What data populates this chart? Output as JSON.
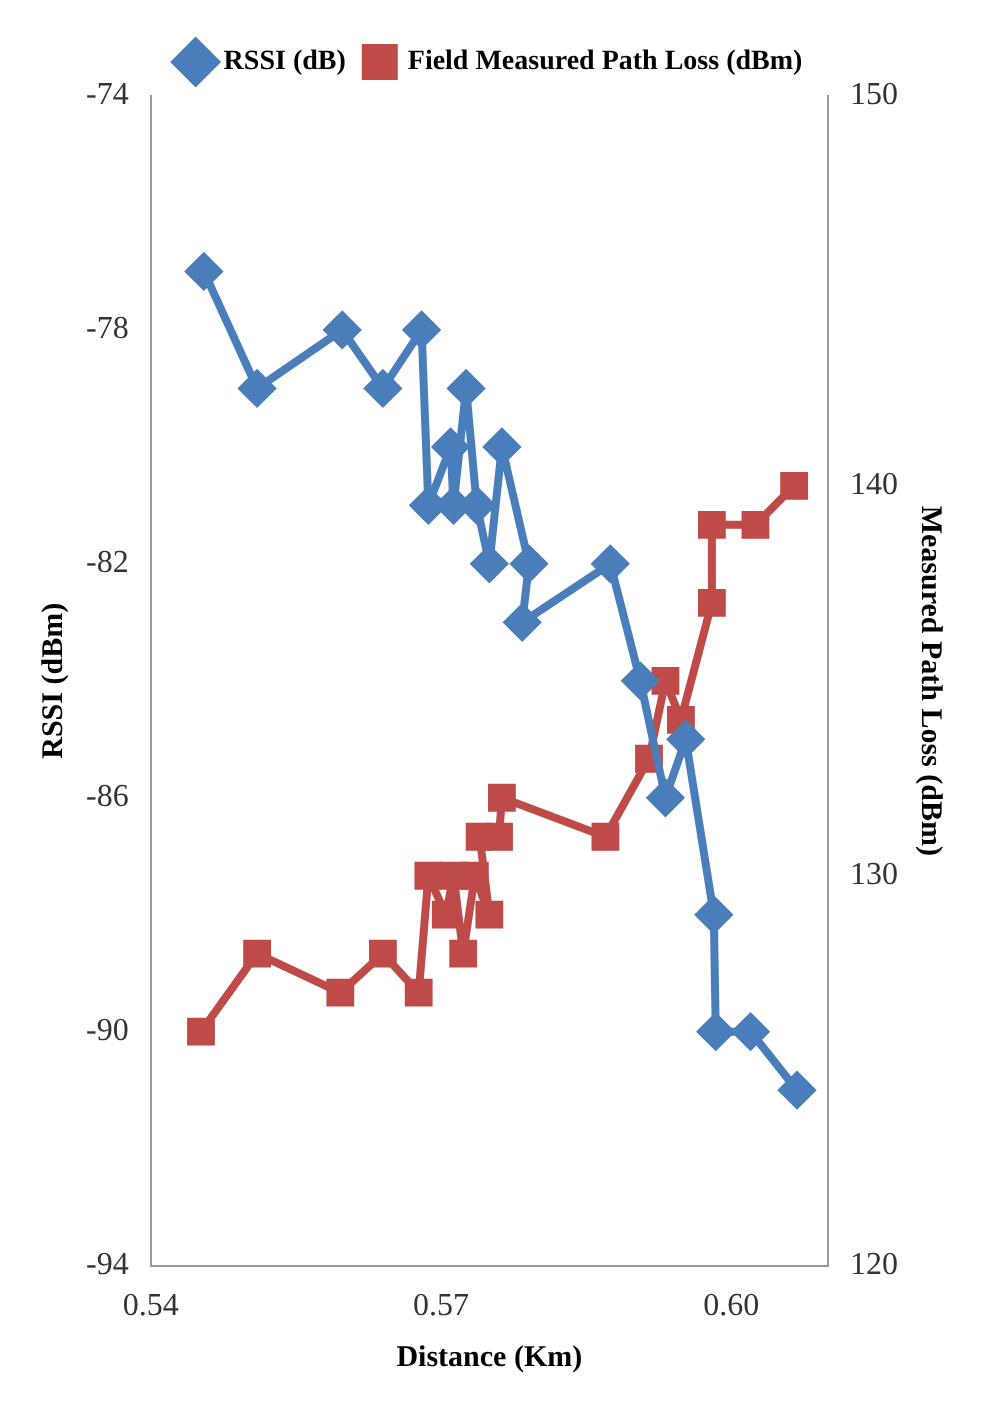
{
  "chart_data": {
    "type": "line",
    "xlabel": "Distance (Km)",
    "ylabel": "RSSI (dBm)",
    "y2label": "Measured Path Loss (dBm)",
    "xlim": [
      0.54,
      0.61
    ],
    "xticks": [
      {
        "value": 0.54,
        "label": "0.54"
      },
      {
        "value": 0.57,
        "label": "0.57"
      },
      {
        "value": 0.6,
        "label": "0.60"
      }
    ],
    "ylim": [
      -94,
      -74
    ],
    "yticks": [
      -94,
      -90,
      -86,
      -82,
      -78,
      -74
    ],
    "y2lim": [
      120,
      150
    ],
    "y2ticks": [
      120,
      130,
      140,
      150
    ],
    "grid": false,
    "legend": "top",
    "line_style": "solid",
    "series": [
      {
        "name": "RSSI (dB)",
        "color": "#4a7ebb",
        "marker": "diamond",
        "x": [
          0.5455,
          0.551,
          0.5598,
          0.564,
          0.568,
          0.5687,
          0.571,
          0.5713,
          0.5726,
          0.5737,
          0.575,
          0.5763,
          0.5791,
          0.5784,
          0.5875,
          0.5906,
          0.5932,
          0.5953,
          0.5982,
          0.5984,
          0.602,
          0.6068
        ],
        "values": [
          -77,
          -79,
          -78,
          -79,
          -78,
          -81,
          -80,
          -81,
          -79,
          -81,
          -82,
          -80,
          -82,
          -83,
          -82,
          -84,
          -86,
          -85,
          -88,
          -90,
          -90,
          -91
        ]
      },
      {
        "name": "Field Measured Path Loss (dBm)",
        "color": "#be4b48",
        "marker": "square",
        "axis": "y2",
        "x": [
          0.5452,
          0.551,
          0.5596,
          0.564,
          0.5677,
          0.5687,
          0.5705,
          0.5713,
          0.5723,
          0.5735,
          0.575,
          0.574,
          0.576,
          0.5763,
          0.587,
          0.5915,
          0.5932,
          0.5948,
          0.598,
          0.598,
          0.6025,
          0.6065
        ],
        "values": [
          126,
          128,
          127,
          128,
          127,
          130,
          129,
          130,
          128,
          130,
          129,
          131,
          131,
          132,
          131,
          133,
          135,
          134,
          137,
          139,
          139,
          140
        ]
      }
    ]
  }
}
